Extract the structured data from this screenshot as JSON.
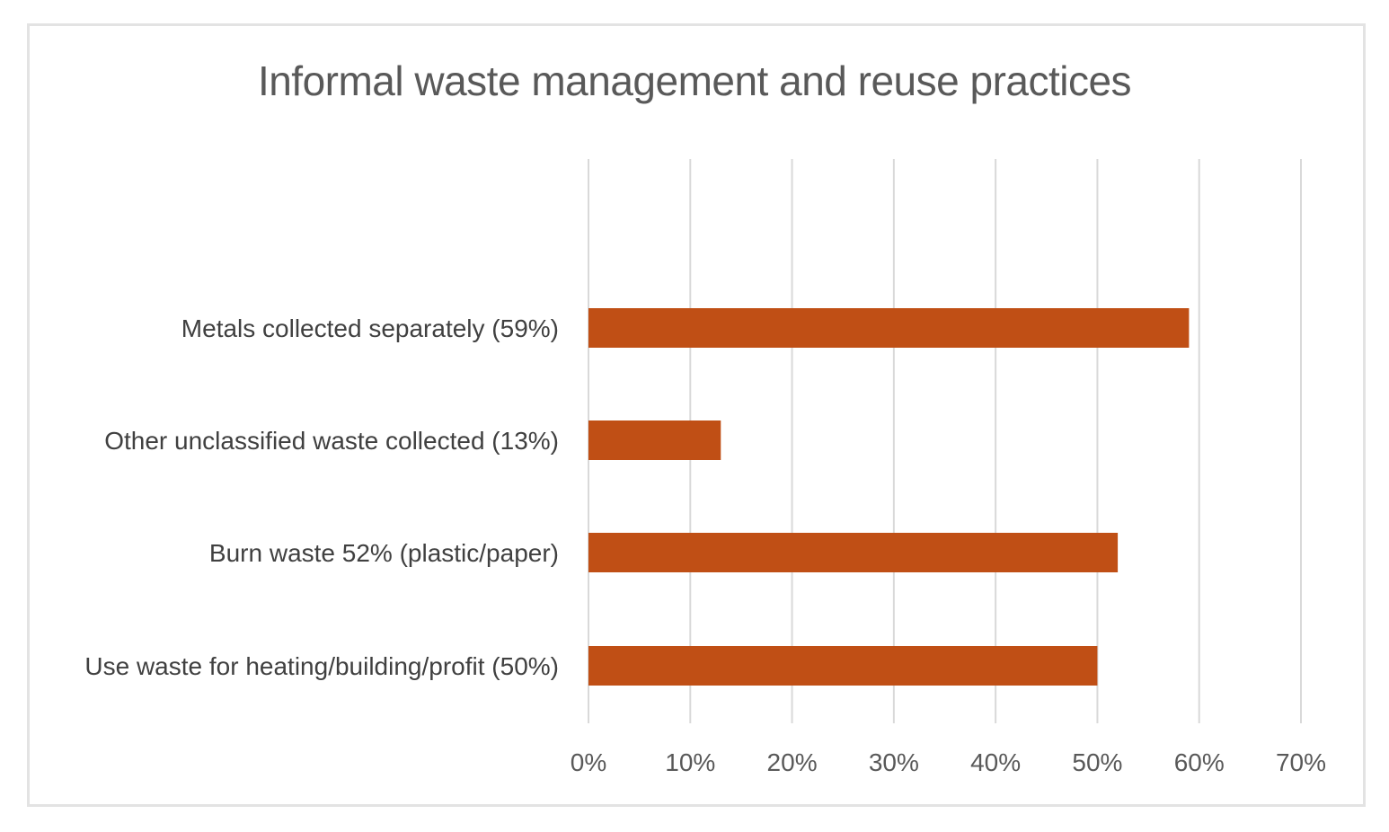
{
  "chart_data": {
    "type": "bar",
    "orientation": "horizontal",
    "title": "Informal waste management and reuse practices",
    "categories": [
      "Metals collected separately (59%)",
      "Other unclassified waste collected (13%)",
      "Burn waste 52% (plastic/paper)",
      "Use waste for heating/building/profit (50%)"
    ],
    "values": [
      59,
      13,
      52,
      50
    ],
    "xlim": [
      0,
      70
    ],
    "x_ticks": [
      "0%",
      "10%",
      "20%",
      "30%",
      "40%",
      "50%",
      "60%",
      "70%"
    ],
    "xlabel": "",
    "ylabel": "",
    "grid": "vertical",
    "legend": "none",
    "bar_color": "#C04F15",
    "grid_color": "#d9d9d9"
  }
}
